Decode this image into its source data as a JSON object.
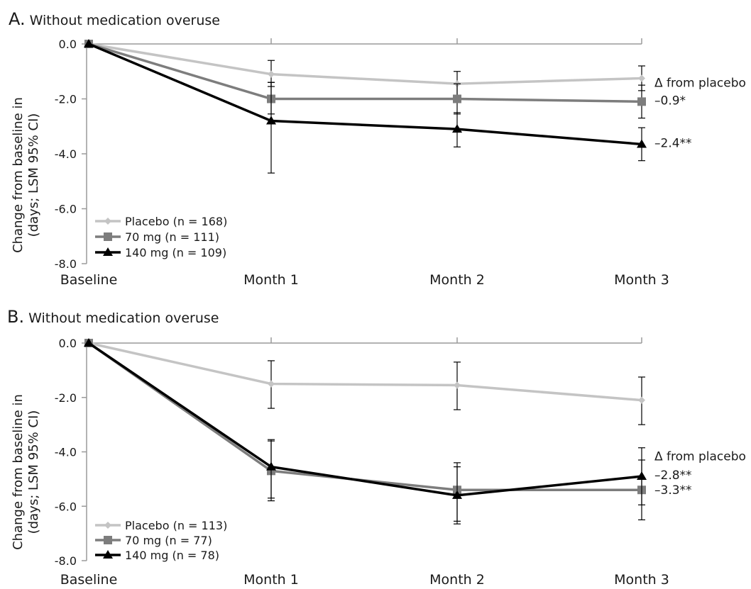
{
  "chart_data": [
    {
      "panel": "A",
      "type": "line",
      "title_letter": "A.",
      "title": "Without medication overuse",
      "xlabel": "",
      "ylabel_line1": "Change from baseline in",
      "ylabel_line2": "(days; LSM 95% CI)",
      "ylim": [
        -8,
        0
      ],
      "yticks": [
        0,
        -2,
        -4,
        -6,
        -8
      ],
      "ytick_labels": [
        "0.0",
        "-2.0",
        "-4.0",
        "-6.0",
        "-8.0"
      ],
      "categories": [
        "Baseline",
        "Month 1",
        "Month 2",
        "Month 3"
      ],
      "grid": false,
      "legend_position": "bottom-left",
      "series": [
        {
          "name": "Placebo (n = 168)",
          "color": "#c4c4c4",
          "marker": "diamond",
          "values": [
            0,
            -1.1,
            -1.45,
            -1.25
          ],
          "ci": [
            null,
            [
              -1.55,
              -0.6
            ],
            [
              -1.95,
              -1.0
            ],
            [
              -1.7,
              -0.8
            ]
          ]
        },
        {
          "name": "70 mg (n = 111)",
          "color": "#7d7d7d",
          "marker": "square",
          "values": [
            0,
            -2.0,
            -2.0,
            -2.1
          ],
          "ci": [
            null,
            [
              -2.55,
              -1.4
            ],
            [
              -2.55,
              -1.45
            ],
            [
              -2.7,
              -1.5
            ]
          ]
        },
        {
          "name": "140 mg (n = 109)",
          "color": "#000000",
          "marker": "triangle",
          "values": [
            0,
            -2.8,
            -3.1,
            -3.65
          ],
          "ci": [
            null,
            [
              -4.7,
              -1.4
            ],
            [
              -3.75,
              -2.5
            ],
            [
              -4.25,
              -3.05
            ]
          ]
        }
      ],
      "annotations": [
        {
          "text": "Δ from placebo",
          "anchor": "month3",
          "y": -1.4
        },
        {
          "text": "–0.9*",
          "anchor": "month3",
          "y": -2.05
        },
        {
          "text": "–2.4**",
          "anchor": "month3",
          "y": -3.6
        }
      ]
    },
    {
      "panel": "B",
      "type": "line",
      "title_letter": "B.",
      "title": "Without medication overuse",
      "xlabel": "",
      "ylabel_line1": "Change from baseline in",
      "ylabel_line2": "(days; LSM 95% CI)",
      "ylim": [
        -8,
        0
      ],
      "yticks": [
        0,
        -2,
        -4,
        -6,
        -8
      ],
      "ytick_labels": [
        "0.0",
        "-2.0",
        "-4.0",
        "-6.0",
        "-8.0"
      ],
      "categories": [
        "Baseline",
        "Month 1",
        "Month 2",
        "Month 3"
      ],
      "grid": false,
      "legend_position": "bottom-left",
      "series": [
        {
          "name": "Placebo (n = 113)",
          "color": "#c4c4c4",
          "marker": "diamond",
          "values": [
            0,
            -1.5,
            -1.55,
            -2.1
          ],
          "ci": [
            null,
            [
              -2.4,
              -0.65
            ],
            [
              -2.45,
              -0.7
            ],
            [
              -3.0,
              -1.25
            ]
          ]
        },
        {
          "name": "70 mg (n = 77)",
          "color": "#7d7d7d",
          "marker": "square",
          "values": [
            0,
            -4.7,
            -5.4,
            -5.4
          ],
          "ci": [
            null,
            [
              -5.8,
              -3.6
            ],
            [
              -6.55,
              -4.4
            ],
            [
              -6.5,
              -4.3
            ]
          ]
        },
        {
          "name": "140 mg (n = 78)",
          "color": "#000000",
          "marker": "triangle",
          "values": [
            0,
            -4.55,
            -5.6,
            -4.9
          ],
          "ci": [
            null,
            [
              -5.7,
              -3.55
            ],
            [
              -6.65,
              -4.55
            ],
            [
              -5.95,
              -3.85
            ]
          ]
        }
      ],
      "annotations": [
        {
          "text": "Δ from placebo",
          "anchor": "month3",
          "y": -4.15
        },
        {
          "text": "–2.8**",
          "anchor": "month3",
          "y": -4.85
        },
        {
          "text": "–3.3**",
          "anchor": "month3",
          "y": -5.4
        }
      ]
    }
  ]
}
